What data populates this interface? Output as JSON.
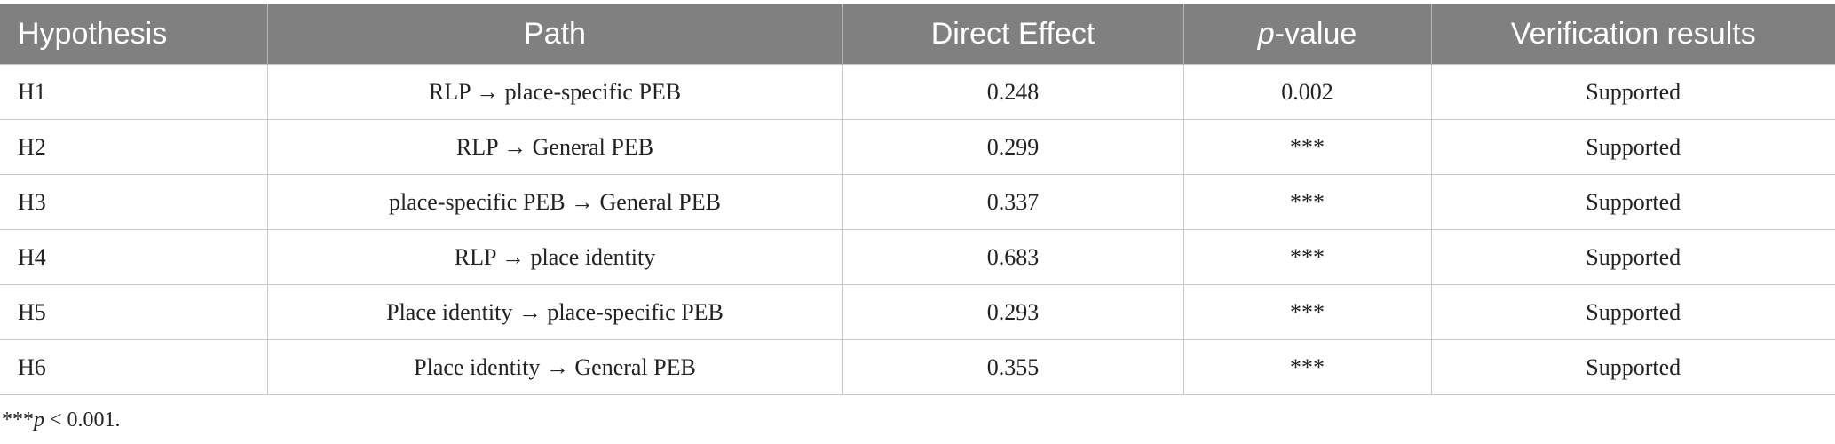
{
  "table": {
    "headers": [
      "Hypothesis",
      "Path",
      "Direct Effect",
      {
        "italic": "p",
        "text": "-value"
      },
      "Verification results"
    ],
    "rows": [
      [
        "H1",
        "RLP → place-specific PEB",
        "0.248",
        "0.002",
        "Supported"
      ],
      [
        "H2",
        "RLP → General PEB",
        "0.299",
        "***",
        "Supported"
      ],
      [
        "H3",
        "place-specific PEB → General PEB",
        "0.337",
        "***",
        "Supported"
      ],
      [
        "H4",
        "RLP → place identity",
        "0.683",
        "***",
        "Supported"
      ],
      [
        "H5",
        "Place identity → place-specific PEB",
        "0.293",
        "***",
        "Supported"
      ],
      [
        "H6",
        "Place identity → General PEB",
        "0.355",
        "***",
        "Supported"
      ]
    ]
  },
  "footnote": {
    "marker": "***",
    "italic": "p",
    "text": " < 0.001."
  }
}
